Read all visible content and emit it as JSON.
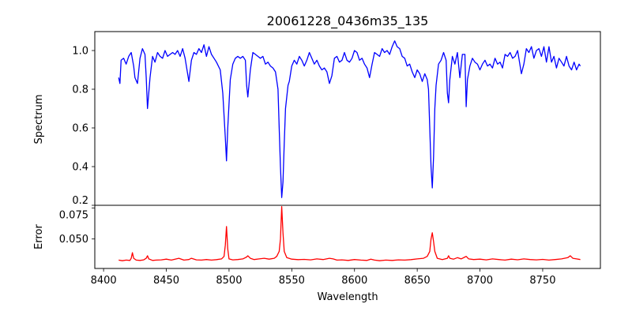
{
  "chart_data": [
    {
      "type": "line",
      "title": "20061228_0436m35_135",
      "xlabel": "",
      "ylabel": "Spectrum",
      "xlim": [
        8393,
        8796
      ],
      "ylim": [
        0.2,
        1.098
      ],
      "yticks": [
        "0.2",
        "0.4",
        "0.6",
        "0.8",
        "1.0"
      ],
      "ytick_values": [
        0.2,
        0.4,
        0.6,
        0.8,
        1.0
      ],
      "grid": false,
      "color": "#0000ff",
      "series": [
        {
          "name": "Spectrum",
          "x": [
            8412,
            8413,
            8414,
            8416,
            8418,
            8420,
            8422,
            8424,
            8425,
            8427,
            8429,
            8431,
            8433,
            8434,
            8435,
            8437,
            8439,
            8441,
            8443,
            8445,
            8447,
            8449,
            8451,
            8453,
            8455,
            8457,
            8459,
            8461,
            8463,
            8465,
            8467,
            8468,
            8470,
            8472,
            8474,
            8476,
            8478,
            8480,
            8482,
            8484,
            8486,
            8488,
            8490,
            8493,
            8495,
            8497,
            8498,
            8499,
            8501,
            8503,
            8505,
            8507,
            8509,
            8511,
            8513,
            8514,
            8515,
            8517,
            8519,
            8521,
            8523,
            8525,
            8527,
            8529,
            8531,
            8533,
            8535,
            8537,
            8539,
            8540,
            8541,
            8542,
            8543,
            8544,
            8545,
            8547,
            8548,
            8550,
            8552,
            8554,
            8556,
            8558,
            8560,
            8562,
            8564,
            8566,
            8568,
            8570,
            8572,
            8574,
            8576,
            8578,
            8580,
            8582,
            8584,
            8586,
            8588,
            8590,
            8592,
            8594,
            8596,
            8598,
            8600,
            8602,
            8604,
            8606,
            8608,
            8610,
            8612,
            8614,
            8616,
            8618,
            8620,
            8622,
            8624,
            8626,
            8628,
            8630,
            8632,
            8634,
            8636,
            8638,
            8640,
            8642,
            8644,
            8646,
            8648,
            8650,
            8652,
            8654,
            8656,
            8658,
            8659,
            8660,
            8661,
            8662,
            8663,
            8664,
            8665,
            8667,
            8669,
            8671,
            8673,
            8674,
            8675,
            8676,
            8678,
            8680,
            8682,
            8684,
            8686,
            8688,
            8689,
            8690,
            8692,
            8694,
            8696,
            8698,
            8700,
            8702,
            8704,
            8706,
            8708,
            8710,
            8712,
            8714,
            8716,
            8718,
            8720,
            8722,
            8724,
            8726,
            8728,
            8730,
            8731,
            8733,
            8735,
            8737,
            8739,
            8741,
            8743,
            8745,
            8747,
            8749,
            8751,
            8753,
            8755,
            8757,
            8759,
            8761,
            8763,
            8765,
            8767,
            8769,
            8771,
            8773,
            8775,
            8777,
            8779,
            8780
          ],
          "y": [
            0.86,
            0.83,
            0.95,
            0.96,
            0.93,
            0.97,
            0.99,
            0.92,
            0.86,
            0.83,
            0.96,
            1.01,
            0.98,
            0.86,
            0.7,
            0.86,
            0.97,
            0.94,
            0.99,
            0.97,
            0.96,
            1.0,
            0.97,
            0.98,
            0.99,
            0.98,
            1.0,
            0.97,
            1.01,
            0.96,
            0.88,
            0.84,
            0.95,
            0.99,
            0.98,
            1.01,
            0.99,
            1.03,
            0.97,
            1.02,
            0.98,
            0.96,
            0.94,
            0.9,
            0.78,
            0.55,
            0.43,
            0.6,
            0.85,
            0.93,
            0.96,
            0.97,
            0.96,
            0.97,
            0.95,
            0.82,
            0.76,
            0.9,
            0.99,
            0.98,
            0.97,
            0.96,
            0.97,
            0.93,
            0.94,
            0.92,
            0.91,
            0.89,
            0.8,
            0.6,
            0.4,
            0.24,
            0.32,
            0.52,
            0.7,
            0.82,
            0.84,
            0.92,
            0.95,
            0.93,
            0.97,
            0.95,
            0.92,
            0.95,
            0.99,
            0.96,
            0.93,
            0.95,
            0.92,
            0.9,
            0.91,
            0.89,
            0.83,
            0.87,
            0.96,
            0.97,
            0.94,
            0.95,
            0.99,
            0.95,
            0.94,
            0.96,
            1.0,
            0.99,
            0.95,
            0.96,
            0.93,
            0.91,
            0.86,
            0.93,
            0.99,
            0.98,
            0.97,
            1.01,
            0.99,
            1.0,
            0.98,
            1.02,
            1.05,
            1.02,
            1.01,
            0.97,
            0.96,
            0.92,
            0.93,
            0.89,
            0.86,
            0.9,
            0.88,
            0.84,
            0.88,
            0.85,
            0.8,
            0.6,
            0.4,
            0.29,
            0.45,
            0.7,
            0.82,
            0.93,
            0.95,
            0.99,
            0.95,
            0.78,
            0.73,
            0.85,
            0.97,
            0.93,
            0.99,
            0.86,
            0.98,
            0.98,
            0.71,
            0.85,
            0.92,
            0.96,
            0.94,
            0.93,
            0.9,
            0.93,
            0.95,
            0.92,
            0.93,
            0.91,
            0.96,
            0.93,
            0.94,
            0.91,
            0.98,
            0.97,
            0.99,
            0.96,
            0.97,
            1.0,
            0.96,
            0.88,
            0.93,
            1.01,
            0.99,
            1.02,
            0.96,
            1.0,
            1.01,
            0.97,
            1.02,
            0.94,
            1.02,
            0.94,
            0.97,
            0.91,
            0.96,
            0.94,
            0.92,
            0.97,
            0.92,
            0.9,
            0.94,
            0.9,
            0.93,
            0.92
          ]
        }
      ]
    },
    {
      "type": "line",
      "title": "",
      "xlabel": "Wavelength",
      "ylabel": "Error",
      "xlim": [
        8393,
        8796
      ],
      "ylim": [
        0.0263,
        0.0771
      ],
      "xticks": [
        "8400",
        "8450",
        "8500",
        "8550",
        "8600",
        "8650",
        "8700",
        "8750"
      ],
      "xtick_values": [
        8400,
        8450,
        8500,
        8550,
        8600,
        8650,
        8700,
        8750
      ],
      "yticks": [
        "0.050",
        "0.075"
      ],
      "ytick_values": [
        0.05,
        0.075
      ],
      "grid": false,
      "color": "#ff0000",
      "series": [
        {
          "name": "Error",
          "x": [
            8412,
            8415,
            8418,
            8421,
            8422,
            8423,
            8424,
            8426,
            8429,
            8432,
            8434,
            8435,
            8436,
            8439,
            8442,
            8446,
            8450,
            8454,
            8458,
            8460,
            8464,
            8468,
            8470,
            8474,
            8478,
            8482,
            8486,
            8490,
            8494,
            8496,
            8497,
            8498,
            8499,
            8500,
            8503,
            8507,
            8511,
            8514,
            8515,
            8517,
            8520,
            8524,
            8528,
            8532,
            8536,
            8538,
            8540,
            8541,
            8542,
            8543,
            8544,
            8546,
            8550,
            8555,
            8560,
            8565,
            8570,
            8575,
            8580,
            8583,
            8586,
            8590,
            8595,
            8600,
            8605,
            8610,
            8613,
            8616,
            8620,
            8625,
            8630,
            8635,
            8640,
            8645,
            8650,
            8655,
            8658,
            8660,
            8661,
            8662,
            8663,
            8664,
            8666,
            8670,
            8674,
            8675,
            8676,
            8679,
            8682,
            8685,
            8688,
            8689,
            8691,
            8695,
            8700,
            8705,
            8710,
            8715,
            8720,
            8725,
            8730,
            8735,
            8740,
            8745,
            8750,
            8755,
            8760,
            8765,
            8770,
            8772,
            8774,
            8777,
            8780
          ],
          "y": [
            0.033,
            0.0325,
            0.033,
            0.0328,
            0.0345,
            0.039,
            0.0345,
            0.033,
            0.0328,
            0.0332,
            0.0345,
            0.0365,
            0.034,
            0.0328,
            0.033,
            0.0332,
            0.0338,
            0.033,
            0.034,
            0.0345,
            0.033,
            0.0335,
            0.0345,
            0.0332,
            0.033,
            0.0335,
            0.033,
            0.0334,
            0.034,
            0.036,
            0.045,
            0.06,
            0.042,
            0.034,
            0.0332,
            0.0335,
            0.034,
            0.0355,
            0.0365,
            0.0345,
            0.0335,
            0.034,
            0.0345,
            0.0338,
            0.0345,
            0.036,
            0.04,
            0.05,
            0.076,
            0.055,
            0.04,
            0.035,
            0.0338,
            0.0334,
            0.0336,
            0.0332,
            0.034,
            0.0335,
            0.0345,
            0.034,
            0.033,
            0.0332,
            0.0328,
            0.0335,
            0.033,
            0.0328,
            0.0338,
            0.033,
            0.0325,
            0.033,
            0.0328,
            0.0332,
            0.033,
            0.0334,
            0.034,
            0.0345,
            0.036,
            0.04,
            0.05,
            0.055,
            0.048,
            0.04,
            0.0345,
            0.0335,
            0.0345,
            0.0365,
            0.0345,
            0.0338,
            0.035,
            0.034,
            0.0355,
            0.036,
            0.034,
            0.0335,
            0.0338,
            0.0332,
            0.034,
            0.0335,
            0.033,
            0.0338,
            0.0333,
            0.034,
            0.0335,
            0.0332,
            0.0336,
            0.033,
            0.0335,
            0.034,
            0.035,
            0.0365,
            0.0345,
            0.034,
            0.0335
          ]
        }
      ]
    }
  ]
}
